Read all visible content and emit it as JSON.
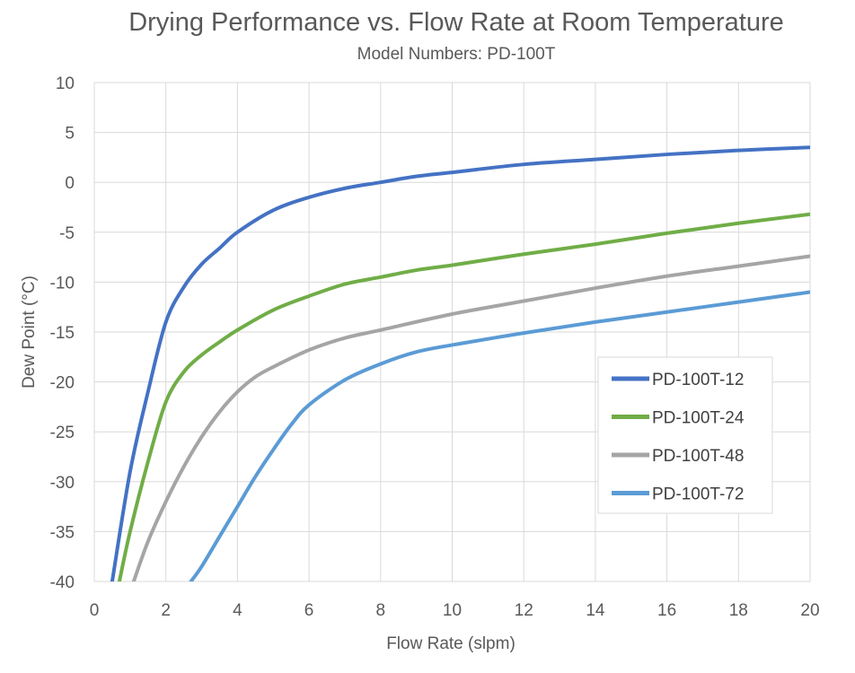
{
  "chart_data": {
    "type": "line",
    "title": "Drying Performance vs. Flow Rate at Room Temperature",
    "subtitle": "Model Numbers: PD-100T",
    "xlabel": "Flow Rate (slpm)",
    "ylabel": "Dew Point (°C)",
    "xlim": [
      0,
      20
    ],
    "ylim": [
      -40,
      10
    ],
    "x_ticks": [
      0,
      2,
      4,
      6,
      8,
      10,
      12,
      14,
      16,
      18,
      20
    ],
    "y_ticks": [
      10,
      5,
      0,
      -5,
      -10,
      -15,
      -20,
      -25,
      -30,
      -35,
      -40
    ],
    "grid": "vertical and horizontal",
    "legend_position": "right, lower-middle",
    "smooth": true,
    "series": [
      {
        "name": "PD-100T-12",
        "color": "#4472c4",
        "x": [
          0.5,
          1.0,
          1.5,
          2.0,
          2.5,
          3.0,
          3.5,
          4.0,
          5.0,
          6.0,
          7.0,
          8.0,
          9.0,
          10.0,
          12.0,
          14.0,
          16.0,
          18.0,
          20.0
        ],
        "y": [
          -40,
          -29,
          -21,
          -14,
          -10.5,
          -8.2,
          -6.6,
          -5,
          -2.8,
          -1.5,
          -0.6,
          0,
          0.6,
          1.0,
          1.8,
          2.3,
          2.8,
          3.2,
          3.5
        ]
      },
      {
        "name": "PD-100T-24",
        "color": "#70ad47",
        "x": [
          0.7,
          1.0,
          1.5,
          2.0,
          2.5,
          3.0,
          3.5,
          4.0,
          5.0,
          6.0,
          7.0,
          8.0,
          9.0,
          10.0,
          12.0,
          14.0,
          16.0,
          18.0,
          20.0
        ],
        "y": [
          -40,
          -35,
          -28,
          -22,
          -19,
          -17.3,
          -16,
          -14.8,
          -12.8,
          -11.4,
          -10.2,
          -9.5,
          -8.8,
          -8.3,
          -7.2,
          -6.2,
          -5.1,
          -4.1,
          -3.2
        ]
      },
      {
        "name": "PD-100T-48",
        "color": "#a5a5a5",
        "x": [
          1.1,
          1.5,
          2.0,
          2.5,
          3.0,
          3.5,
          4.0,
          4.5,
          5.0,
          6.0,
          7.0,
          8.0,
          10.0,
          12.0,
          14.0,
          16.0,
          18.0,
          20.0
        ],
        "y": [
          -40,
          -36,
          -32,
          -28.5,
          -25.5,
          -23,
          -21,
          -19.5,
          -18.5,
          -16.8,
          -15.6,
          -14.8,
          -13.2,
          -11.9,
          -10.6,
          -9.4,
          -8.4,
          -7.4
        ]
      },
      {
        "name": "PD-100T-72",
        "color": "#5b9bd5",
        "x": [
          2.7,
          3.0,
          3.5,
          4.0,
          4.5,
          5.0,
          5.5,
          6.0,
          7.0,
          8.0,
          9.0,
          10.0,
          12.0,
          14.0,
          16.0,
          18.0,
          20.0
        ],
        "y": [
          -40,
          -38.5,
          -35.5,
          -32.5,
          -29.5,
          -26.8,
          -24.3,
          -22.3,
          -19.8,
          -18.2,
          -17.0,
          -16.3,
          -15.1,
          -14.0,
          -13.0,
          -12.0,
          -11.0
        ]
      }
    ]
  }
}
